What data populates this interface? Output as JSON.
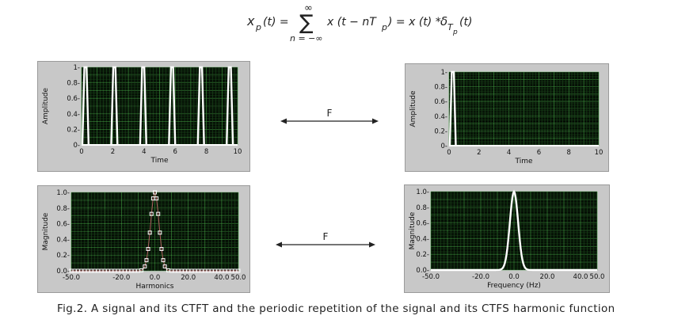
{
  "formula": {
    "lhs_sym": "x",
    "lhs_sub": "p",
    "lhs_arg": "(t) =",
    "sum_top": "∞",
    "sum_bottom": "n = −∞",
    "sum_symbol": "∑",
    "term_pre": "x (t − nT",
    "term_sub": "p",
    "term_post": ") = x (t) *",
    "delta": "δ",
    "delta_sub": "T",
    "delta_subsub": "p",
    "delta_arg": "(t)"
  },
  "transform_label_top": "F",
  "transform_label_bottom": "F",
  "caption": "Fig.2. A signal and its CTFT and the periodic repetition of the signal and its CTFS harmonic function",
  "colors": {
    "plot_bg": "#000000",
    "grid_minor": "#1b4a1b",
    "grid_major": "#3f9a3f",
    "trace": "#ffffff",
    "frame": "#c8c8c8"
  },
  "chart_data": [
    {
      "type": "line",
      "xlabel": "Time",
      "ylabel": "Amplitude",
      "xlim": [
        0,
        10
      ],
      "ylim": [
        0,
        1
      ],
      "xticks": [
        "0",
        "2",
        "4",
        "6",
        "8",
        "10"
      ],
      "yticks": [
        "0-",
        "0.2-",
        "0.4-",
        "0.6-",
        "0.8-",
        "1-"
      ],
      "pulse_centers": [
        0.25,
        2.1,
        3.95,
        5.8,
        7.65,
        9.5
      ],
      "pulse_half_width": 0.2,
      "peak": 1
    },
    {
      "type": "line",
      "xlabel": "Time",
      "ylabel": "Amplitude",
      "xlim": [
        0,
        10
      ],
      "ylim": [
        0,
        1
      ],
      "xticks": [
        "0",
        "2",
        "4",
        "6",
        "8",
        "10"
      ],
      "yticks": [
        "0-",
        "0.2-",
        "0.4-",
        "0.6-",
        "0.8-",
        "1-"
      ],
      "pulse_centers": [
        0.25
      ],
      "pulse_half_width": 0.2,
      "peak": 1
    },
    {
      "type": "scatter",
      "xlabel": "Harmonics",
      "ylabel": "Magnitude",
      "xlim": [
        -50,
        50
      ],
      "ylim": [
        0,
        1
      ],
      "xticks": [
        "-50.0",
        "-20.0",
        "0.0",
        "20.0",
        "40.0",
        "50.0"
      ],
      "xtick_values": [
        -50,
        -20,
        0,
        20,
        40,
        50
      ],
      "yticks": [
        "0.0-",
        "0.2-",
        "0.4-",
        "0.6-",
        "0.8-",
        "1.0-"
      ],
      "harmonics": [
        -50,
        50
      ],
      "gaussian_sigma": 2.5
    },
    {
      "type": "line",
      "xlabel": "Frequency (Hz)",
      "ylabel": "Magnitude",
      "xlim": [
        -50,
        50
      ],
      "ylim": [
        0,
        1
      ],
      "xticks": [
        "-50.0",
        "-20.0",
        "0.0",
        "20.0",
        "40.0",
        "50.0"
      ],
      "xtick_values": [
        -50,
        -20,
        0,
        20,
        40,
        50
      ],
      "yticks": [
        "0.0-",
        "0.2-",
        "0.4-",
        "0.6-",
        "0.8-",
        "1.0-"
      ],
      "gaussian_sigma": 2.5
    }
  ]
}
